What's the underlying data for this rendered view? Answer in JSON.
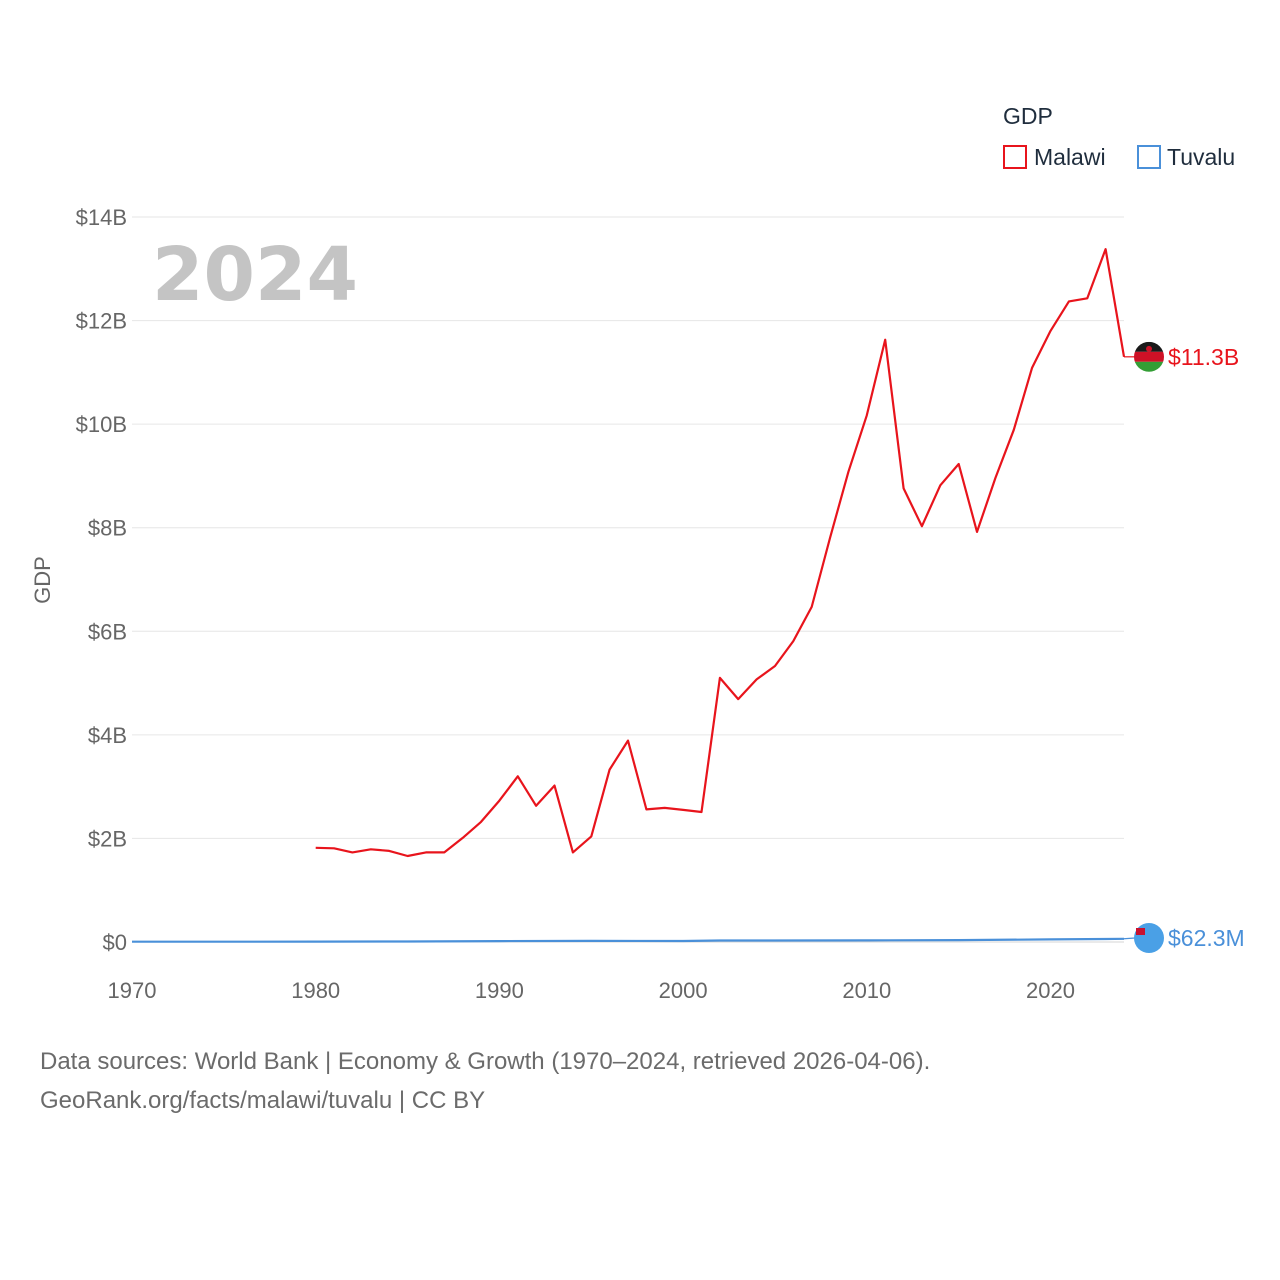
{
  "chart_data": {
    "type": "line",
    "title": "",
    "year_label": "2024",
    "xlabel": "",
    "ylabel": "GDP",
    "xlim": [
      1970,
      2024
    ],
    "ylim": [
      0,
      14000000000
    ],
    "x_ticks": [
      1970,
      1980,
      1990,
      2000,
      2010,
      2020
    ],
    "y_ticks": [
      {
        "value": 0,
        "label": "$0"
      },
      {
        "value": 2000000000,
        "label": "$2B"
      },
      {
        "value": 4000000000,
        "label": "$4B"
      },
      {
        "value": 6000000000,
        "label": "$6B"
      },
      {
        "value": 8000000000,
        "label": "$8B"
      },
      {
        "value": 10000000000,
        "label": "$10B"
      },
      {
        "value": 12000000000,
        "label": "$12B"
      },
      {
        "value": 14000000000,
        "label": "$14B"
      }
    ],
    "grid": true,
    "legend": {
      "title": "GDP",
      "placement": "top-right"
    },
    "series": [
      {
        "name": "Malawi",
        "color": "#e8141c",
        "end_label": "$11.3B",
        "x": [
          1980,
          1981,
          1982,
          1983,
          1984,
          1985,
          1986,
          1987,
          1988,
          1989,
          1990,
          1991,
          1992,
          1993,
          1994,
          1995,
          1996,
          1997,
          1998,
          1999,
          2000,
          2001,
          2002,
          2003,
          2004,
          2005,
          2006,
          2007,
          2008,
          2009,
          2010,
          2011,
          2012,
          2013,
          2014,
          2015,
          2016,
          2017,
          2018,
          2019,
          2020,
          2021,
          2022,
          2023,
          2024
        ],
        "values": [
          1820000000,
          1810000000,
          1730000000,
          1790000000,
          1760000000,
          1660000000,
          1730000000,
          1730000000,
          2010000000,
          2320000000,
          2730000000,
          3200000000,
          2630000000,
          3020000000,
          1730000000,
          2040000000,
          3330000000,
          3890000000,
          2560000000,
          2590000000,
          2550000000,
          2510000000,
          5100000000,
          4690000000,
          5070000000,
          5330000000,
          5810000000,
          6470000000,
          7810000000,
          9080000000,
          10170000000,
          11630000000,
          8760000000,
          8030000000,
          8820000000,
          9230000000,
          7920000000,
          8960000000,
          9890000000,
          11090000000,
          11800000000,
          12370000000,
          12430000000,
          13380000000,
          11300000000
        ]
      },
      {
        "name": "Tuvalu",
        "color": "#4a90d9",
        "end_label": "$62.3M",
        "x": [
          1970,
          1975,
          1980,
          1985,
          1990,
          1995,
          2000,
          2002,
          2005,
          2010,
          2015,
          2020,
          2023,
          2024
        ],
        "values": [
          5000000,
          6000000,
          7000000,
          9000000,
          18000000,
          22000000,
          20000000,
          28000000,
          29000000,
          31000000,
          36000000,
          50000000,
          58000000,
          62300000
        ]
      }
    ]
  },
  "footer": {
    "sources": "Data sources: World Bank | Economy & Growth (1970–2024, retrieved 2026-04-06).",
    "attribution": "GeoRank.org/facts/malawi/tuvalu | CC BY"
  }
}
